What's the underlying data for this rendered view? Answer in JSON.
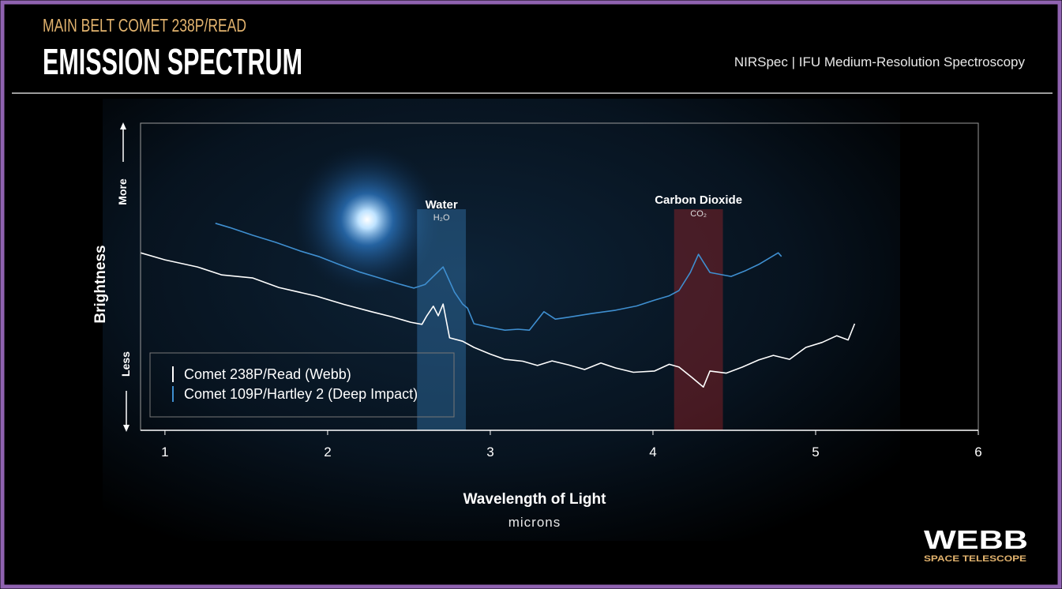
{
  "chart_data": {
    "type": "line",
    "subtitle": "MAIN BELT COMET 238P/READ",
    "title": "EMISSION SPECTRUM",
    "instrument": "NIRSpec | IFU Medium-Resolution Spectroscopy",
    "x_label": "Wavelength of Light",
    "x_unit": "microns",
    "y_label": "Brightness",
    "y_high": "More",
    "y_low": "Less",
    "xlim": [
      0.85,
      6
    ],
    "xticks": [
      1,
      2,
      3,
      4,
      5,
      6
    ],
    "ylim": [
      0,
      100
    ],
    "legend": "lower-left",
    "bands": [
      {
        "label": "Water",
        "formula": "H₂O",
        "x": [
          2.55,
          2.85
        ],
        "color": "#3f8fd0"
      },
      {
        "label": "Carbon Dioxide",
        "formula": "CO₂",
        "x": [
          4.13,
          4.43
        ],
        "color": "#c0282a"
      }
    ],
    "series": [
      {
        "name": "Comet 238P/Read (Webb)",
        "color": "#ffffff",
        "x": [
          0.85,
          1.0,
          1.2,
          1.35,
          1.54,
          1.7,
          1.93,
          2.1,
          2.27,
          2.4,
          2.51,
          2.58,
          2.61,
          2.65,
          2.68,
          2.71,
          2.75,
          2.83,
          2.9,
          3.0,
          3.09,
          3.2,
          3.29,
          3.38,
          3.48,
          3.58,
          3.68,
          3.77,
          3.88,
          4.01,
          4.1,
          4.16,
          4.24,
          4.31,
          4.35,
          4.45,
          4.55,
          4.65,
          4.74,
          4.84,
          4.94,
          5.04,
          5.13,
          5.2,
          5.24
        ],
        "values": [
          57.8,
          55.5,
          53.2,
          50.6,
          49.6,
          46.5,
          43.7,
          41.0,
          38.6,
          36.9,
          35.2,
          34.5,
          37.3,
          40.4,
          37.3,
          41.1,
          30.1,
          29.0,
          27.0,
          24.8,
          23.1,
          22.5,
          21.1,
          22.6,
          21.3,
          19.8,
          21.9,
          20.3,
          18.9,
          19.3,
          21.5,
          20.6,
          17.2,
          14.1,
          19.3,
          18.6,
          20.6,
          22.9,
          24.4,
          23.1,
          27.0,
          28.6,
          30.8,
          29.4,
          34.7
        ]
      },
      {
        "name": "Comet 109P/Hartley 2 (Deep Impact)",
        "color": "#3f8fd0",
        "x": [
          1.31,
          1.4,
          1.54,
          1.68,
          1.83,
          1.95,
          2.07,
          2.2,
          2.32,
          2.43,
          2.53,
          2.6,
          2.65,
          2.71,
          2.78,
          2.83,
          2.86,
          2.9,
          3.0,
          3.09,
          3.17,
          3.24,
          3.33,
          3.4,
          3.48,
          3.62,
          3.77,
          3.9,
          4.01,
          4.1,
          4.16,
          4.23,
          4.28,
          4.35,
          4.48,
          4.57,
          4.65,
          4.77,
          4.79
        ],
        "values": [
          67.4,
          66.0,
          63.5,
          61.2,
          58.4,
          56.5,
          54.0,
          51.5,
          49.6,
          47.8,
          46.3,
          47.5,
          50.1,
          53.2,
          45.0,
          41.1,
          39.8,
          34.7,
          33.5,
          32.6,
          32.9,
          32.6,
          38.6,
          36.2,
          36.8,
          38.0,
          39.1,
          40.5,
          42.4,
          43.8,
          45.5,
          51.4,
          57.3,
          51.4,
          50.1,
          52.0,
          54.0,
          57.8,
          56.6
        ]
      }
    ]
  }
}
